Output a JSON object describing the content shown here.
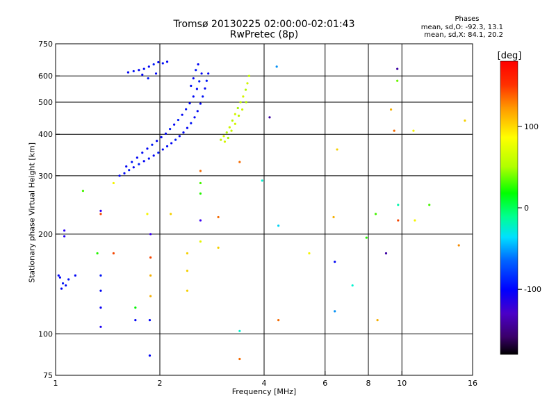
{
  "chart_data": {
    "type": "scatter",
    "title": "Tromsø 20130225 02:00:00-02:01:43",
    "subtitle": "RwPretec (8p)",
    "stats_title": "Phases",
    "stats_o": "mean, sd,O: -92.3, 13.1",
    "stats_x": "mean, sd,X:  84.1, 20.2",
    "xlabel": "Frequency [MHz]",
    "ylabel": "Stationary phase Virtual Height [km]",
    "x_scale": "log",
    "y_scale": "log",
    "xlim": [
      1,
      16
    ],
    "ylim": [
      75,
      750
    ],
    "x_ticks": [
      1,
      2,
      4,
      6,
      8,
      10,
      16
    ],
    "x_tick_labels": [
      "1",
      "2",
      "4",
      "6",
      "8",
      "10",
      "16"
    ],
    "x_gridlines": [
      2,
      4,
      6,
      8,
      10
    ],
    "y_ticks": [
      75,
      100,
      200,
      300,
      400,
      500,
      600,
      750
    ],
    "y_tick_labels": [
      "75",
      "100",
      "200",
      "300",
      "400",
      "500",
      "600",
      "750"
    ],
    "y_gridlines": [
      100,
      200,
      300,
      400,
      500,
      600
    ],
    "grid": true,
    "colorbar": {
      "label": "[deg]",
      "range": [
        -180,
        180
      ],
      "ticks": [
        -100,
        0,
        100
      ],
      "tick_labels": [
        "-100",
        "0",
        "100"
      ]
    },
    "series": [
      {
        "name": "",
        "points": [
          {
            "x": 1.53,
            "y": 300,
            "phase": -100
          },
          {
            "x": 1.58,
            "y": 305,
            "phase": -98
          },
          {
            "x": 1.63,
            "y": 312,
            "phase": -95
          },
          {
            "x": 1.68,
            "y": 318,
            "phase": -100
          },
          {
            "x": 1.74,
            "y": 325,
            "phase": -92
          },
          {
            "x": 1.8,
            "y": 332,
            "phase": -100
          },
          {
            "x": 1.86,
            "y": 338,
            "phase": -96
          },
          {
            "x": 1.92,
            "y": 345,
            "phase": -100
          },
          {
            "x": 1.98,
            "y": 352,
            "phase": -94
          },
          {
            "x": 2.04,
            "y": 360,
            "phase": -100
          },
          {
            "x": 2.1,
            "y": 368,
            "phase": -97
          },
          {
            "x": 2.16,
            "y": 376,
            "phase": -100
          },
          {
            "x": 2.22,
            "y": 385,
            "phase": -93
          },
          {
            "x": 2.28,
            "y": 395,
            "phase": -100
          },
          {
            "x": 2.34,
            "y": 405,
            "phase": -98
          },
          {
            "x": 2.4,
            "y": 418,
            "phase": -100
          },
          {
            "x": 2.46,
            "y": 432,
            "phase": -95
          },
          {
            "x": 2.52,
            "y": 450,
            "phase": -100
          },
          {
            "x": 2.57,
            "y": 470,
            "phase": -99
          },
          {
            "x": 2.62,
            "y": 495,
            "phase": -100
          },
          {
            "x": 2.66,
            "y": 520,
            "phase": -96
          },
          {
            "x": 2.7,
            "y": 550,
            "phase": -100
          },
          {
            "x": 2.73,
            "y": 580,
            "phase": -94
          },
          {
            "x": 2.76,
            "y": 610,
            "phase": -100
          },
          {
            "x": 1.6,
            "y": 320,
            "phase": -100
          },
          {
            "x": 1.66,
            "y": 330,
            "phase": -95
          },
          {
            "x": 1.72,
            "y": 340,
            "phase": -100
          },
          {
            "x": 1.78,
            "y": 352,
            "phase": -97
          },
          {
            "x": 1.84,
            "y": 362,
            "phase": -100
          },
          {
            "x": 1.9,
            "y": 372,
            "phase": -94
          },
          {
            "x": 1.96,
            "y": 382,
            "phase": -100
          },
          {
            "x": 2.02,
            "y": 392,
            "phase": -98
          },
          {
            "x": 2.08,
            "y": 402,
            "phase": -100
          },
          {
            "x": 2.14,
            "y": 415,
            "phase": -95
          },
          {
            "x": 2.2,
            "y": 428,
            "phase": -100
          },
          {
            "x": 2.26,
            "y": 442,
            "phase": -93
          },
          {
            "x": 2.32,
            "y": 458,
            "phase": -100
          },
          {
            "x": 2.38,
            "y": 476,
            "phase": -96
          },
          {
            "x": 2.44,
            "y": 496,
            "phase": -100
          },
          {
            "x": 2.5,
            "y": 520,
            "phase": -99
          },
          {
            "x": 2.56,
            "y": 548,
            "phase": -100
          },
          {
            "x": 2.6,
            "y": 578,
            "phase": -94
          },
          {
            "x": 2.64,
            "y": 610,
            "phase": -100
          },
          {
            "x": 2.46,
            "y": 560,
            "phase": -97
          },
          {
            "x": 2.5,
            "y": 590,
            "phase": -100
          },
          {
            "x": 2.54,
            "y": 625,
            "phase": -95
          },
          {
            "x": 2.58,
            "y": 650,
            "phase": -100
          },
          {
            "x": 1.62,
            "y": 615,
            "phase": -100
          },
          {
            "x": 1.68,
            "y": 620,
            "phase": -96
          },
          {
            "x": 1.74,
            "y": 625,
            "phase": -100
          },
          {
            "x": 1.8,
            "y": 630,
            "phase": -98
          },
          {
            "x": 1.86,
            "y": 640,
            "phase": -100
          },
          {
            "x": 1.92,
            "y": 650,
            "phase": -94
          },
          {
            "x": 1.98,
            "y": 660,
            "phase": -100
          },
          {
            "x": 2.04,
            "y": 655,
            "phase": -97
          },
          {
            "x": 2.1,
            "y": 662,
            "phase": -100
          },
          {
            "x": 1.78,
            "y": 605,
            "phase": -100
          },
          {
            "x": 1.85,
            "y": 590,
            "phase": -95
          },
          {
            "x": 1.95,
            "y": 610,
            "phase": -100
          },
          {
            "x": 3.0,
            "y": 385,
            "phase": 95
          },
          {
            "x": 3.06,
            "y": 395,
            "phase": 100
          },
          {
            "x": 3.12,
            "y": 405,
            "phase": 90
          },
          {
            "x": 3.18,
            "y": 420,
            "phase": 98
          },
          {
            "x": 3.24,
            "y": 440,
            "phase": 92
          },
          {
            "x": 3.3,
            "y": 460,
            "phase": 100
          },
          {
            "x": 3.36,
            "y": 480,
            "phase": 88
          },
          {
            "x": 3.42,
            "y": 500,
            "phase": 96
          },
          {
            "x": 3.48,
            "y": 520,
            "phase": 100
          },
          {
            "x": 3.54,
            "y": 545,
            "phase": 91
          },
          {
            "x": 3.58,
            "y": 570,
            "phase": 99
          },
          {
            "x": 3.62,
            "y": 600,
            "phase": 94
          },
          {
            "x": 3.08,
            "y": 380,
            "phase": 100
          },
          {
            "x": 3.15,
            "y": 390,
            "phase": 87
          },
          {
            "x": 3.22,
            "y": 410,
            "phase": 97
          },
          {
            "x": 3.3,
            "y": 430,
            "phase": 100
          },
          {
            "x": 3.38,
            "y": 455,
            "phase": 93
          },
          {
            "x": 3.46,
            "y": 475,
            "phase": 98
          },
          {
            "x": 3.55,
            "y": 500,
            "phase": 90
          },
          {
            "x": 1.03,
            "y": 148,
            "phase": -100
          },
          {
            "x": 1.05,
            "y": 142,
            "phase": -95
          },
          {
            "x": 1.04,
            "y": 137,
            "phase": -100
          },
          {
            "x": 1.07,
            "y": 140,
            "phase": -98
          },
          {
            "x": 1.02,
            "y": 150,
            "phase": -100
          },
          {
            "x": 1.09,
            "y": 146,
            "phase": -96
          },
          {
            "x": 1.14,
            "y": 150,
            "phase": -100
          },
          {
            "x": 1.06,
            "y": 205,
            "phase": -130
          },
          {
            "x": 1.06,
            "y": 197,
            "phase": -125
          },
          {
            "x": 1.35,
            "y": 235,
            "phase": -135
          },
          {
            "x": 1.35,
            "y": 230,
            "phase": 160
          },
          {
            "x": 1.2,
            "y": 270,
            "phase": 60
          },
          {
            "x": 1.47,
            "y": 285,
            "phase": 110
          },
          {
            "x": 1.32,
            "y": 175,
            "phase": 50
          },
          {
            "x": 1.47,
            "y": 175,
            "phase": 160
          },
          {
            "x": 1.35,
            "y": 150,
            "phase": -95
          },
          {
            "x": 1.35,
            "y": 135,
            "phase": -100
          },
          {
            "x": 1.35,
            "y": 120,
            "phase": -110
          },
          {
            "x": 1.35,
            "y": 105,
            "phase": -120
          },
          {
            "x": 1.7,
            "y": 120,
            "phase": 40
          },
          {
            "x": 1.7,
            "y": 110,
            "phase": -100
          },
          {
            "x": 1.87,
            "y": 110,
            "phase": -100
          },
          {
            "x": 1.87,
            "y": 86,
            "phase": -100
          },
          {
            "x": 1.88,
            "y": 200,
            "phase": -140
          },
          {
            "x": 1.88,
            "y": 170,
            "phase": 160
          },
          {
            "x": 1.88,
            "y": 150,
            "phase": 130
          },
          {
            "x": 1.88,
            "y": 130,
            "phase": 130
          },
          {
            "x": 2.4,
            "y": 175,
            "phase": 120
          },
          {
            "x": 2.4,
            "y": 155,
            "phase": 120
          },
          {
            "x": 2.4,
            "y": 135,
            "phase": 120
          },
          {
            "x": 2.62,
            "y": 190,
            "phase": 105
          },
          {
            "x": 2.62,
            "y": 265,
            "phase": 50
          },
          {
            "x": 2.62,
            "y": 285,
            "phase": 60
          },
          {
            "x": 1.84,
            "y": 230,
            "phase": 110
          },
          {
            "x": 2.15,
            "y": 230,
            "phase": 120
          },
          {
            "x": 2.62,
            "y": 220,
            "phase": -140
          },
          {
            "x": 2.62,
            "y": 310,
            "phase": 150
          },
          {
            "x": 2.95,
            "y": 225,
            "phase": 150
          },
          {
            "x": 2.95,
            "y": 182,
            "phase": 120
          },
          {
            "x": 3.4,
            "y": 330,
            "phase": 150
          },
          {
            "x": 3.4,
            "y": 102,
            "phase": -20
          },
          {
            "x": 3.4,
            "y": 84,
            "phase": 150
          },
          {
            "x": 3.95,
            "y": 290,
            "phase": -20
          },
          {
            "x": 4.15,
            "y": 450,
            "phase": -160
          },
          {
            "x": 4.35,
            "y": 640,
            "phase": -60
          },
          {
            "x": 4.4,
            "y": 212,
            "phase": -40
          },
          {
            "x": 4.4,
            "y": 110,
            "phase": 150
          },
          {
            "x": 5.4,
            "y": 175,
            "phase": 110
          },
          {
            "x": 6.35,
            "y": 225,
            "phase": 130
          },
          {
            "x": 6.4,
            "y": 165,
            "phase": -100
          },
          {
            "x": 6.4,
            "y": 117,
            "phase": -60
          },
          {
            "x": 6.5,
            "y": 360,
            "phase": 120
          },
          {
            "x": 7.2,
            "y": 140,
            "phase": -20
          },
          {
            "x": 7.9,
            "y": 195,
            "phase": 50
          },
          {
            "x": 8.4,
            "y": 230,
            "phase": 60
          },
          {
            "x": 8.5,
            "y": 110,
            "phase": 130
          },
          {
            "x": 9.0,
            "y": 175,
            "phase": -160
          },
          {
            "x": 9.3,
            "y": 475,
            "phase": 130
          },
          {
            "x": 9.5,
            "y": 410,
            "phase": 150
          },
          {
            "x": 9.7,
            "y": 630,
            "phase": -160
          },
          {
            "x": 9.7,
            "y": 580,
            "phase": 70
          },
          {
            "x": 9.75,
            "y": 245,
            "phase": -10
          },
          {
            "x": 9.75,
            "y": 220,
            "phase": 160
          },
          {
            "x": 10.8,
            "y": 410,
            "phase": 110
          },
          {
            "x": 10.9,
            "y": 220,
            "phase": 110
          },
          {
            "x": 12.0,
            "y": 245,
            "phase": 60
          },
          {
            "x": 14.6,
            "y": 185,
            "phase": 140
          },
          {
            "x": 15.2,
            "y": 440,
            "phase": 120
          }
        ]
      }
    ]
  }
}
